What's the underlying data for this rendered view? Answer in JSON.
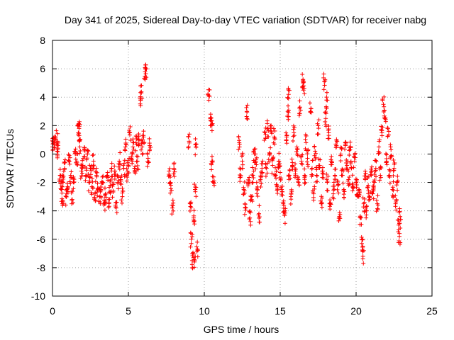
{
  "chart_data": {
    "type": "scatter",
    "title": "Day 341 of 2025, Sidereal Day-to-day VTEC variation (SDTVAR) for receiver nabg",
    "xlabel": "GPS time / hours",
    "ylabel": "SDTVAR / TECUs",
    "xlim": [
      0,
      25
    ],
    "ylim": [
      -10,
      8
    ],
    "grid": true,
    "legend": "none",
    "marker": "plus",
    "series_color": "#ff0000",
    "x_ticks": [
      "0",
      "5",
      "10",
      "15",
      "20",
      "25"
    ],
    "y_ticks": [
      "-10",
      "-8",
      "-6",
      "-4",
      "-2",
      "0",
      "2",
      "4",
      "6",
      "8"
    ],
    "clusters": [
      {
        "x": 0.0,
        "y": 0.5
      },
      {
        "x": 0.1,
        "y": 0.8
      },
      {
        "x": 0.2,
        "y": 1.2
      },
      {
        "x": 0.3,
        "y": 0.2
      },
      {
        "x": 0.35,
        "y": 0.9
      },
      {
        "x": 0.5,
        "y": -1.5
      },
      {
        "x": 0.6,
        "y": -2.5
      },
      {
        "x": 0.65,
        "y": -3.5
      },
      {
        "x": 0.7,
        "y": -2.0
      },
      {
        "x": 0.8,
        "y": -1.0
      },
      {
        "x": 0.9,
        "y": -3.0
      },
      {
        "x": 1.0,
        "y": -2.3
      },
      {
        "x": 1.1,
        "y": -0.5
      },
      {
        "x": 1.2,
        "y": -1.5
      },
      {
        "x": 1.3,
        "y": -3.2
      },
      {
        "x": 1.4,
        "y": -2.0
      },
      {
        "x": 1.5,
        "y": 0.2
      },
      {
        "x": 1.6,
        "y": -0.5
      },
      {
        "x": 1.7,
        "y": 1.5
      },
      {
        "x": 1.75,
        "y": 1.8
      },
      {
        "x": 1.8,
        "y": 0.5
      },
      {
        "x": 1.9,
        "y": -1.2
      },
      {
        "x": 2.0,
        "y": -0.8
      },
      {
        "x": 2.1,
        "y": 0.3
      },
      {
        "x": 2.2,
        "y": -1.5
      },
      {
        "x": 2.3,
        "y": 0.0
      },
      {
        "x": 2.4,
        "y": -2.0
      },
      {
        "x": 2.5,
        "y": -1.0
      },
      {
        "x": 2.6,
        "y": -2.3
      },
      {
        "x": 2.7,
        "y": -0.5
      },
      {
        "x": 2.8,
        "y": -2.8
      },
      {
        "x": 2.9,
        "y": -1.5
      },
      {
        "x": 3.0,
        "y": -2.4
      },
      {
        "x": 3.1,
        "y": -3.0
      },
      {
        "x": 3.2,
        "y": -2.5
      },
      {
        "x": 3.3,
        "y": -2.0
      },
      {
        "x": 3.4,
        "y": -3.5
      },
      {
        "x": 3.5,
        "y": -2.8
      },
      {
        "x": 3.6,
        "y": -1.5
      },
      {
        "x": 3.7,
        "y": -3.2
      },
      {
        "x": 3.8,
        "y": -2.2
      },
      {
        "x": 3.9,
        "y": -1.0
      },
      {
        "x": 4.0,
        "y": -2.6
      },
      {
        "x": 4.1,
        "y": -1.2
      },
      {
        "x": 4.2,
        "y": -3.8
      },
      {
        "x": 4.3,
        "y": -2.0
      },
      {
        "x": 4.4,
        "y": -0.5
      },
      {
        "x": 4.5,
        "y": -1.8
      },
      {
        "x": 4.6,
        "y": -3.0
      },
      {
        "x": 4.7,
        "y": -1.0
      },
      {
        "x": 4.8,
        "y": 0.5
      },
      {
        "x": 4.9,
        "y": -1.5
      },
      {
        "x": 5.0,
        "y": -0.8
      },
      {
        "x": 5.1,
        "y": 1.5
      },
      {
        "x": 5.2,
        "y": -0.2
      },
      {
        "x": 5.3,
        "y": 0.5
      },
      {
        "x": 5.4,
        "y": -1.0
      },
      {
        "x": 5.5,
        "y": 0.8
      },
      {
        "x": 5.6,
        "y": -0.5
      },
      {
        "x": 5.7,
        "y": 1.0
      },
      {
        "x": 5.8,
        "y": 3.8
      },
      {
        "x": 5.85,
        "y": 4.3
      },
      {
        "x": 5.9,
        "y": 0.5
      },
      {
        "x": 6.0,
        "y": 1.2
      },
      {
        "x": 6.1,
        "y": 5.8
      },
      {
        "x": 6.15,
        "y": 6.0
      },
      {
        "x": 6.3,
        "y": -0.3
      },
      {
        "x": 6.4,
        "y": 0.6
      },
      {
        "x": 7.7,
        "y": -1.5
      },
      {
        "x": 7.8,
        "y": -2.2
      },
      {
        "x": 7.9,
        "y": -3.8
      },
      {
        "x": 8.0,
        "y": -1.0
      },
      {
        "x": 9.0,
        "y": 0.9
      },
      {
        "x": 9.1,
        "y": -3.5
      },
      {
        "x": 9.15,
        "y": -6.0
      },
      {
        "x": 9.2,
        "y": -7.5
      },
      {
        "x": 9.3,
        "y": -4.5
      },
      {
        "x": 9.35,
        "y": -7.6
      },
      {
        "x": 9.4,
        "y": -2.5
      },
      {
        "x": 9.45,
        "y": 0.5
      },
      {
        "x": 9.55,
        "y": -6.7
      },
      {
        "x": 10.3,
        "y": 4.1
      },
      {
        "x": 10.4,
        "y": 2.5
      },
      {
        "x": 10.5,
        "y": 2.0
      },
      {
        "x": 10.5,
        "y": -0.5
      },
      {
        "x": 10.6,
        "y": -2.0
      },
      {
        "x": 12.3,
        "y": 0.8
      },
      {
        "x": 12.4,
        "y": -1.5
      },
      {
        "x": 12.5,
        "y": -0.5
      },
      {
        "x": 12.6,
        "y": -2.5
      },
      {
        "x": 12.7,
        "y": -3.8
      },
      {
        "x": 12.8,
        "y": 3.0
      },
      {
        "x": 12.9,
        "y": -2.0
      },
      {
        "x": 13.0,
        "y": -4.5
      },
      {
        "x": 13.1,
        "y": -3.0
      },
      {
        "x": 13.2,
        "y": -1.5
      },
      {
        "x": 13.3,
        "y": 0.0
      },
      {
        "x": 13.4,
        "y": -0.5
      },
      {
        "x": 13.5,
        "y": -2.5
      },
      {
        "x": 13.6,
        "y": -4.2
      },
      {
        "x": 13.7,
        "y": -1.8
      },
      {
        "x": 13.8,
        "y": -1.0
      },
      {
        "x": 14.0,
        "y": 1.5
      },
      {
        "x": 14.1,
        "y": -1.0
      },
      {
        "x": 14.2,
        "y": 1.8
      },
      {
        "x": 14.3,
        "y": 0.0
      },
      {
        "x": 14.4,
        "y": 2.0
      },
      {
        "x": 14.5,
        "y": -0.8
      },
      {
        "x": 14.6,
        "y": 1.2
      },
      {
        "x": 14.7,
        "y": -1.5
      },
      {
        "x": 14.8,
        "y": -2.3
      },
      {
        "x": 14.9,
        "y": -0.5
      },
      {
        "x": 15.0,
        "y": -1.3
      },
      {
        "x": 15.1,
        "y": -2.5
      },
      {
        "x": 15.2,
        "y": -3.5
      },
      {
        "x": 15.3,
        "y": -4.3
      },
      {
        "x": 15.4,
        "y": 1.0
      },
      {
        "x": 15.5,
        "y": 3.0
      },
      {
        "x": 15.55,
        "y": 4.2
      },
      {
        "x": 15.6,
        "y": -1.5
      },
      {
        "x": 15.7,
        "y": -3.0
      },
      {
        "x": 15.8,
        "y": -0.8
      },
      {
        "x": 15.9,
        "y": 1.5
      },
      {
        "x": 16.0,
        "y": -1.2
      },
      {
        "x": 16.1,
        "y": 0.5
      },
      {
        "x": 16.2,
        "y": -2.0
      },
      {
        "x": 16.3,
        "y": 3.3
      },
      {
        "x": 16.4,
        "y": -0.5
      },
      {
        "x": 16.5,
        "y": 5.2
      },
      {
        "x": 16.55,
        "y": 4.8
      },
      {
        "x": 16.6,
        "y": -1.5
      },
      {
        "x": 16.7,
        "y": 0.8
      },
      {
        "x": 16.8,
        "y": -0.3
      },
      {
        "x": 17.0,
        "y": 3.0
      },
      {
        "x": 17.1,
        "y": -1.0
      },
      {
        "x": 17.2,
        "y": -2.8
      },
      {
        "x": 17.3,
        "y": 0.2
      },
      {
        "x": 17.4,
        "y": -1.5
      },
      {
        "x": 17.5,
        "y": 2.0
      },
      {
        "x": 17.6,
        "y": -0.8
      },
      {
        "x": 17.7,
        "y": -3.5
      },
      {
        "x": 17.8,
        "y": -1.2
      },
      {
        "x": 17.9,
        "y": 5.1
      },
      {
        "x": 18.0,
        "y": 2.5
      },
      {
        "x": 18.05,
        "y": 3.8
      },
      {
        "x": 18.1,
        "y": -2.0
      },
      {
        "x": 18.2,
        "y": 1.5
      },
      {
        "x": 18.3,
        "y": -3.5
      },
      {
        "x": 18.4,
        "y": -0.5
      },
      {
        "x": 18.5,
        "y": -2.8
      },
      {
        "x": 18.6,
        "y": -1.5
      },
      {
        "x": 18.7,
        "y": 0.5
      },
      {
        "x": 18.8,
        "y": -2.2
      },
      {
        "x": 18.9,
        "y": -4.5
      },
      {
        "x": 19.0,
        "y": 0.0
      },
      {
        "x": 19.1,
        "y": -1.5
      },
      {
        "x": 19.2,
        "y": -2.5
      },
      {
        "x": 19.3,
        "y": 0.8
      },
      {
        "x": 19.4,
        "y": -0.8
      },
      {
        "x": 19.5,
        "y": -1.8
      },
      {
        "x": 19.6,
        "y": 0.3
      },
      {
        "x": 19.7,
        "y": -1.0
      },
      {
        "x": 19.8,
        "y": -2.3
      },
      {
        "x": 19.9,
        "y": -0.5
      },
      {
        "x": 20.0,
        "y": -2.0
      },
      {
        "x": 20.1,
        "y": -3.0
      },
      {
        "x": 20.2,
        "y": -2.5
      },
      {
        "x": 20.3,
        "y": -4.5
      },
      {
        "x": 20.4,
        "y": -6.0
      },
      {
        "x": 20.45,
        "y": -7.2
      },
      {
        "x": 20.5,
        "y": -3.5
      },
      {
        "x": 20.6,
        "y": -1.8
      },
      {
        "x": 20.7,
        "y": -4.0
      },
      {
        "x": 20.8,
        "y": -2.2
      },
      {
        "x": 20.9,
        "y": -3.2
      },
      {
        "x": 21.0,
        "y": -1.5
      },
      {
        "x": 21.1,
        "y": -2.8
      },
      {
        "x": 21.2,
        "y": -2.0
      },
      {
        "x": 21.3,
        "y": -1.0
      },
      {
        "x": 21.4,
        "y": -3.5
      },
      {
        "x": 21.5,
        "y": 0.5
      },
      {
        "x": 21.6,
        "y": -1.5
      },
      {
        "x": 21.7,
        "y": 1.5
      },
      {
        "x": 21.8,
        "y": 3.5
      },
      {
        "x": 21.9,
        "y": 2.5
      },
      {
        "x": 22.0,
        "y": -0.5
      },
      {
        "x": 22.1,
        "y": 1.8
      },
      {
        "x": 22.2,
        "y": -1.5
      },
      {
        "x": 22.3,
        "y": 0.3
      },
      {
        "x": 22.4,
        "y": -2.5
      },
      {
        "x": 22.5,
        "y": -1.0
      },
      {
        "x": 22.6,
        "y": -3.5
      },
      {
        "x": 22.7,
        "y": -2.0
      },
      {
        "x": 22.8,
        "y": -5.0
      },
      {
        "x": 22.85,
        "y": -5.8
      },
      {
        "x": 22.9,
        "y": -4.4
      }
    ]
  }
}
